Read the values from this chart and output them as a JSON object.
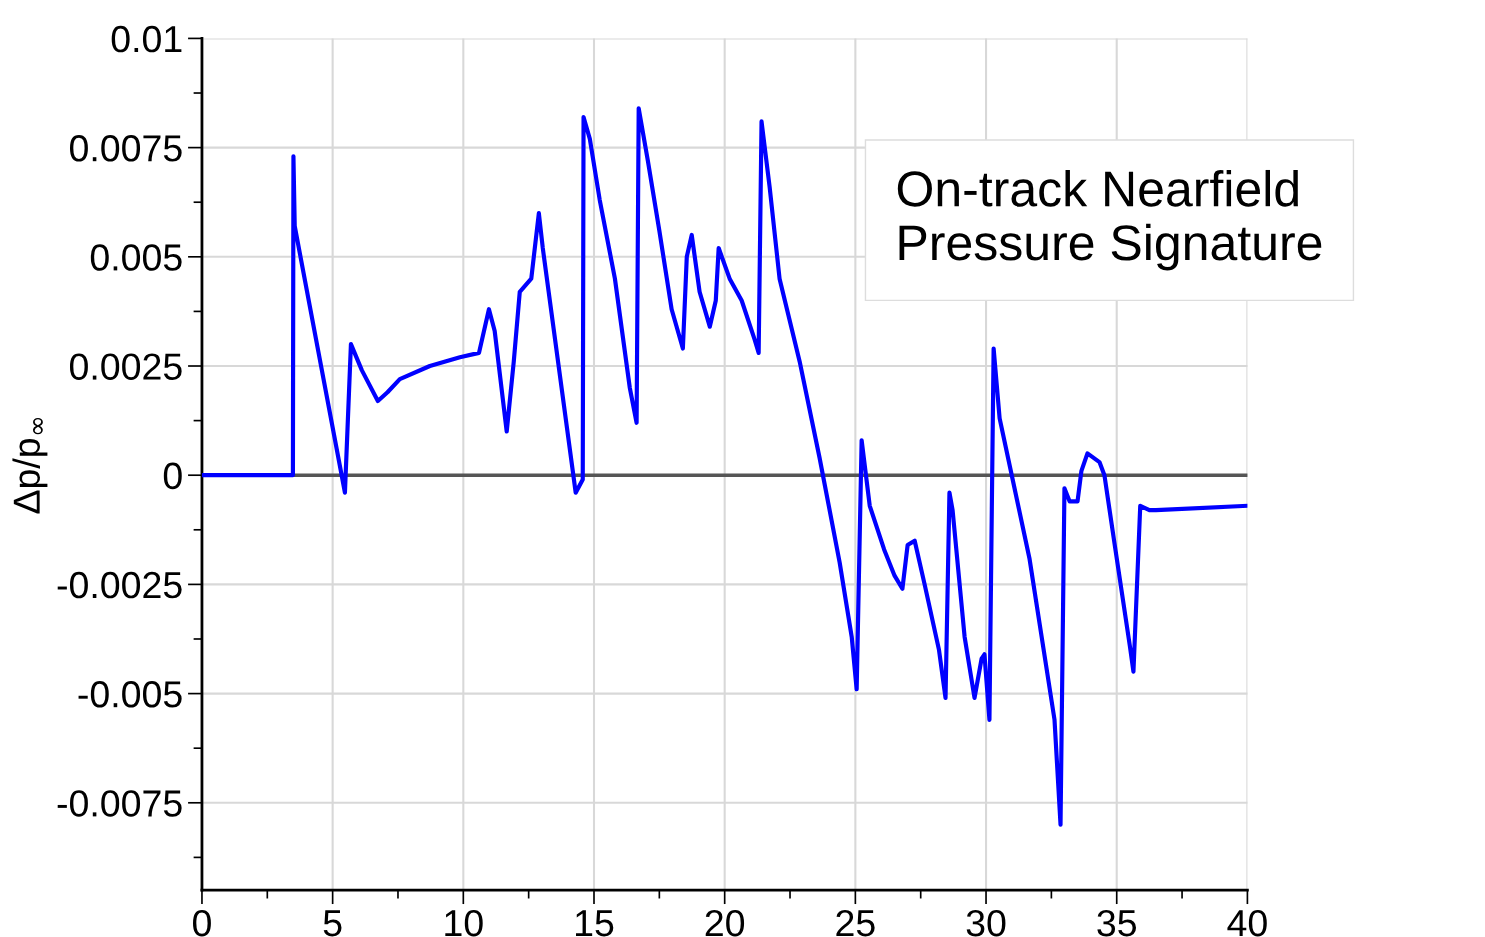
{
  "chart_data": {
    "type": "line",
    "title": "On-track Nearfield Pressure Signature",
    "ylabel": "Δp/p$_{∞}$",
    "x": [
      0,
      3.48,
      3.5,
      3.55,
      5.47,
      5.7,
      6.12,
      6.73,
      7.1,
      7.57,
      8.72,
      9.87,
      10.6,
      10.98,
      11.2,
      11.66,
      11.93,
      12.16,
      12.6,
      12.89,
      13.04,
      14.3,
      14.57,
      14.6,
      14.84,
      15.22,
      15.8,
      16.37,
      16.63,
      16.71,
      17.06,
      17.5,
      17.97,
      18.4,
      18.55,
      18.74,
      19.04,
      19.43,
      19.66,
      19.77,
      20.19,
      20.65,
      21.15,
      21.3,
      21.41,
      21.72,
      22.1,
      22.87,
      23.63,
      24.4,
      24.86,
      25.05,
      25.24,
      25.55,
      26.1,
      26.5,
      26.8,
      27.0,
      27.27,
      27.65,
      28.2,
      28.45,
      28.6,
      28.72,
      29.18,
      29.56,
      29.83,
      29.94,
      30.13,
      30.29,
      30.52,
      31.66,
      32.62,
      32.85,
      33.0,
      33.2,
      33.5,
      33.65,
      33.88,
      34.34,
      34.53,
      34.9,
      35.5,
      35.64,
      35.9,
      36.25,
      36.5,
      40
    ],
    "series": [
      {
        "color": "#0000ff",
        "values": [
          0,
          0,
          0.0073,
          0.0057,
          -0.0004,
          0.003,
          0.0024,
          0.0017,
          0.0019,
          0.0022,
          0.0025,
          0.0027,
          0.0028,
          0.0038,
          0.0033,
          0.001,
          0.0026,
          0.0042,
          0.0045,
          0.006,
          0.0052,
          -0.0004,
          -0.0001,
          0.0082,
          0.0077,
          0.0063,
          0.0045,
          0.002,
          0.0012,
          0.0084,
          0.0072,
          0.0056,
          0.0038,
          0.0029,
          0.005,
          0.0055,
          0.0042,
          0.0034,
          0.004,
          0.0052,
          0.0045,
          0.004,
          0.0031,
          0.0028,
          0.0081,
          0.0066,
          0.0045,
          0.0026,
          0.0004,
          -0.002,
          -0.0037,
          -0.0049,
          0.0008,
          -0.0007,
          -0.0017,
          -0.0023,
          -0.0026,
          -0.0016,
          -0.0015,
          -0.0025,
          -0.004,
          -0.0051,
          -0.0004,
          -0.0008,
          -0.0037,
          -0.0051,
          -0.0042,
          -0.0041,
          -0.0056,
          0.0029,
          0.0013,
          -0.0019,
          -0.0056,
          -0.008,
          -0.0003,
          -0.0006,
          -0.0006,
          0.0001,
          0.0005,
          0.0003,
          0,
          -0.0015,
          -0.0039,
          -0.0045,
          -0.0007,
          -0.0008,
          -0.0008,
          -0.0007
        ]
      }
    ],
    "xlim": [
      0,
      40
    ],
    "ylim": [
      -0.0095,
      0.01
    ],
    "xticks": [
      0,
      {
        "value": 2.5,
        "label": null
      },
      5,
      {
        "value": 7.5,
        "label": null
      },
      10,
      {
        "value": 12.5,
        "label": null
      },
      15,
      {
        "value": 17.5,
        "label": null
      },
      20,
      {
        "value": 22.5,
        "label": null
      },
      25,
      {
        "value": 27.5,
        "label": null
      },
      30,
      {
        "value": 32.5,
        "label": null
      },
      35,
      {
        "value": 37.5,
        "label": null
      },
      40
    ],
    "yticks": [
      {
        "value": -0.00875,
        "label": null
      },
      -0.0075,
      {
        "value": -0.00625,
        "label": null
      },
      -0.005,
      {
        "value": -0.00375,
        "label": null
      },
      -0.0025,
      {
        "value": -0.00125,
        "label": null
      },
      0,
      {
        "value": 0.00125,
        "label": null
      },
      0.0025,
      {
        "value": 0.00375,
        "label": null
      },
      0.005,
      {
        "value": 0.00625,
        "label": null
      },
      0.0075,
      {
        "value": 0.00875,
        "label": null
      },
      0.01
    ],
    "ref_lines": [
      {
        "axis": "y",
        "value": 0,
        "color": "#555555"
      }
    ],
    "grid": true,
    "marker": "none",
    "line_style": "solid",
    "legend": false
  }
}
